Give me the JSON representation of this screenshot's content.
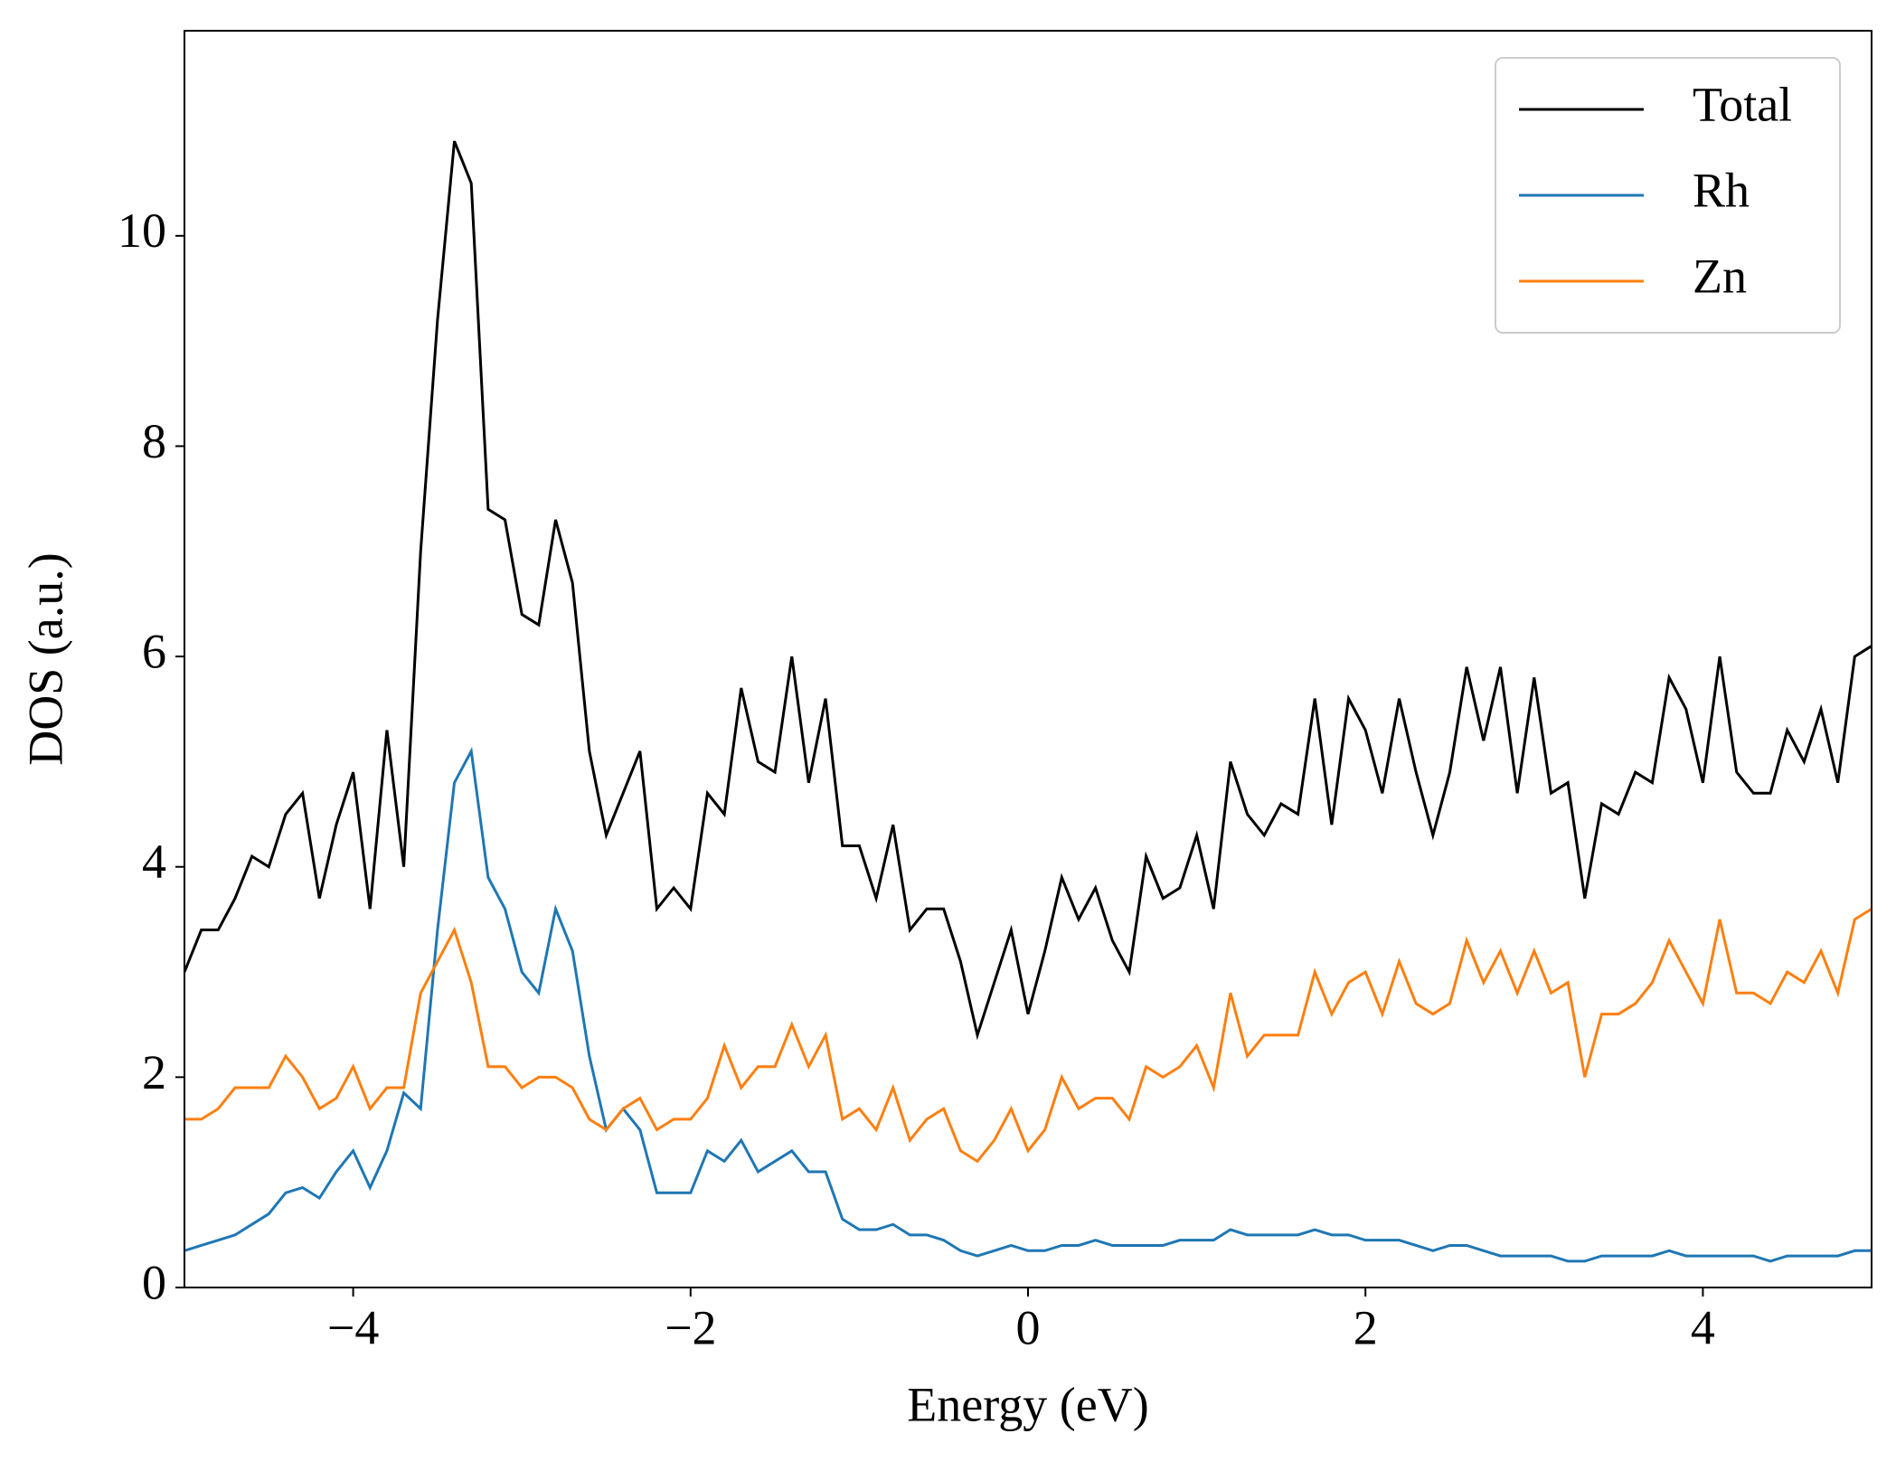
{
  "chart_data": {
    "type": "line",
    "xlabel": "Energy (eV)",
    "ylabel": "DOS (a.u.)",
    "x": [
      -5.0,
      -4.9,
      -4.8,
      -4.7,
      -4.6,
      -4.5,
      -4.4,
      -4.3,
      -4.2,
      -4.1,
      -4.0,
      -3.9,
      -3.8,
      -3.7,
      -3.6,
      -3.5,
      -3.4,
      -3.3,
      -3.2,
      -3.1,
      -3.0,
      -2.9,
      -2.8,
      -2.7,
      -2.6,
      -2.5,
      -2.4,
      -2.3,
      -2.2,
      -2.1,
      -2.0,
      -1.9,
      -1.8,
      -1.7,
      -1.6,
      -1.5,
      -1.4,
      -1.3,
      -1.2,
      -1.1,
      -1.0,
      -0.9,
      -0.8,
      -0.7,
      -0.6,
      -0.5,
      -0.4,
      -0.3,
      -0.2,
      -0.1,
      0.0,
      0.1,
      0.2,
      0.3,
      0.4,
      0.5,
      0.6,
      0.7,
      0.8,
      0.9,
      1.0,
      1.1,
      1.2,
      1.3,
      1.4,
      1.5,
      1.6,
      1.7,
      1.8,
      1.9,
      2.0,
      2.1,
      2.2,
      2.3,
      2.4,
      2.5,
      2.6,
      2.7,
      2.8,
      2.9,
      3.0,
      3.1,
      3.2,
      3.3,
      3.4,
      3.5,
      3.6,
      3.7,
      3.8,
      3.9,
      4.0,
      4.1,
      4.2,
      4.3,
      4.4,
      4.5,
      4.6,
      4.7,
      4.8,
      4.9,
      5.0
    ],
    "series": [
      {
        "name": "Total",
        "color": "#000000",
        "values": [
          3.0,
          3.4,
          3.4,
          3.7,
          4.1,
          4.0,
          4.5,
          4.7,
          3.7,
          4.4,
          4.9,
          3.6,
          5.3,
          4.0,
          7.0,
          9.2,
          10.9,
          10.5,
          7.4,
          7.3,
          6.4,
          6.3,
          7.3,
          6.7,
          5.1,
          4.3,
          4.7,
          5.1,
          3.6,
          3.8,
          3.6,
          4.7,
          4.5,
          5.7,
          5.0,
          4.9,
          6.0,
          4.8,
          5.6,
          4.2,
          4.2,
          3.7,
          4.4,
          3.4,
          3.6,
          3.6,
          3.1,
          2.4,
          2.9,
          3.4,
          2.6,
          3.2,
          3.9,
          3.5,
          3.8,
          3.3,
          3.0,
          4.1,
          3.7,
          3.8,
          4.3,
          3.6,
          5.0,
          4.5,
          4.3,
          4.6,
          4.5,
          5.6,
          4.4,
          5.6,
          5.3,
          4.7,
          5.6,
          4.9,
          4.3,
          4.9,
          5.9,
          5.2,
          5.9,
          4.7,
          5.8,
          4.7,
          4.8,
          3.7,
          4.6,
          4.5,
          4.9,
          4.8,
          5.8,
          5.5,
          4.8,
          6.0,
          4.9,
          4.7,
          4.7,
          5.3,
          5.0,
          5.5,
          4.8,
          6.0,
          6.1
        ]
      },
      {
        "name": "Rh",
        "color": "#1f77b4",
        "values": [
          0.35,
          0.4,
          0.45,
          0.5,
          0.6,
          0.7,
          0.9,
          0.95,
          0.85,
          1.1,
          1.3,
          0.95,
          1.3,
          1.85,
          1.7,
          3.4,
          4.8,
          5.1,
          3.9,
          3.6,
          3.0,
          2.8,
          3.6,
          3.2,
          2.2,
          1.5,
          1.7,
          1.5,
          0.9,
          0.9,
          0.9,
          1.3,
          1.2,
          1.4,
          1.1,
          1.2,
          1.3,
          1.1,
          1.1,
          0.65,
          0.55,
          0.55,
          0.6,
          0.5,
          0.5,
          0.45,
          0.35,
          0.3,
          0.35,
          0.4,
          0.35,
          0.35,
          0.4,
          0.4,
          0.45,
          0.4,
          0.4,
          0.4,
          0.4,
          0.45,
          0.45,
          0.45,
          0.55,
          0.5,
          0.5,
          0.5,
          0.5,
          0.55,
          0.5,
          0.5,
          0.45,
          0.45,
          0.45,
          0.4,
          0.35,
          0.4,
          0.4,
          0.35,
          0.3,
          0.3,
          0.3,
          0.3,
          0.25,
          0.25,
          0.3,
          0.3,
          0.3,
          0.3,
          0.35,
          0.3,
          0.3,
          0.3,
          0.3,
          0.3,
          0.25,
          0.3,
          0.3,
          0.3,
          0.3,
          0.35,
          0.35
        ]
      },
      {
        "name": "Zn",
        "color": "#ff7f0e",
        "values": [
          1.6,
          1.6,
          1.7,
          1.9,
          1.9,
          1.9,
          2.2,
          2.0,
          1.7,
          1.8,
          2.1,
          1.7,
          1.9,
          1.9,
          2.8,
          3.1,
          3.4,
          2.9,
          2.1,
          2.1,
          1.9,
          2.0,
          2.0,
          1.9,
          1.6,
          1.5,
          1.7,
          1.8,
          1.5,
          1.6,
          1.6,
          1.8,
          2.3,
          1.9,
          2.1,
          2.1,
          2.5,
          2.1,
          2.4,
          1.6,
          1.7,
          1.5,
          1.9,
          1.4,
          1.6,
          1.7,
          1.3,
          1.2,
          1.4,
          1.7,
          1.3,
          1.5,
          2.0,
          1.7,
          1.8,
          1.8,
          1.6,
          2.1,
          2.0,
          2.1,
          2.3,
          1.9,
          2.8,
          2.2,
          2.4,
          2.4,
          2.4,
          3.0,
          2.6,
          2.9,
          3.0,
          2.6,
          3.1,
          2.7,
          2.6,
          2.7,
          3.3,
          2.9,
          3.2,
          2.8,
          3.2,
          2.8,
          2.9,
          2.0,
          2.6,
          2.6,
          2.7,
          2.9,
          3.3,
          3.0,
          2.7,
          3.5,
          2.8,
          2.8,
          2.7,
          3.0,
          2.9,
          3.2,
          2.8,
          3.5,
          3.6
        ]
      }
    ],
    "xlim": [
      -5,
      5
    ],
    "ylim": [
      0,
      11.95
    ],
    "xticks": [
      {
        "value": -4,
        "label": "−4"
      },
      {
        "value": -2,
        "label": "−2"
      },
      0,
      2,
      4
    ],
    "yticks": [
      0,
      2,
      4,
      6,
      8,
      10
    ],
    "legend": "upper right",
    "grid": false
  }
}
